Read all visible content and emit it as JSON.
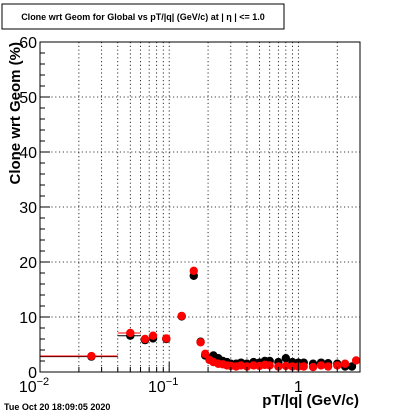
{
  "chart_data": {
    "type": "scatter",
    "title": "Clone wrt Geom for Global vs pT/|q| (GeV/c) at | η | <= 1.0",
    "xlabel": "pT/|q| (GeV/c)",
    "ylabel": "Clone wrt Geom (%)",
    "x_scale": "log",
    "xlim": [
      0.01,
      3.0
    ],
    "ylim": [
      0,
      60
    ],
    "grid": true,
    "legend": "none",
    "y_ticks": [
      "0",
      "10",
      "20",
      "30",
      "40",
      "50",
      "60"
    ],
    "x_tick_labels": [
      {
        "value": 0.01,
        "base": "10",
        "exp": "−2"
      },
      {
        "value": 0.1,
        "base": "10",
        "exp": "−1"
      },
      {
        "value": 1,
        "base": "1",
        "exp": ""
      }
    ],
    "series": [
      {
        "color": "#000000",
        "x": [
          0.025,
          0.05,
          0.065,
          0.075,
          0.095,
          0.125,
          0.155,
          0.175,
          0.19,
          0.205,
          0.22,
          0.24,
          0.26,
          0.28,
          0.3,
          0.33,
          0.36,
          0.4,
          0.45,
          0.5,
          0.55,
          0.6,
          0.7,
          0.8,
          0.9,
          1.0,
          1.1,
          1.3,
          1.5,
          1.7,
          2.0,
          2.3,
          2.6
        ],
        "y": [
          2.8,
          6.6,
          5.8,
          6.1,
          6.0,
          10.1,
          17.5,
          5.5,
          3.0,
          2.5,
          3.0,
          2.5,
          2.0,
          1.8,
          1.5,
          1.5,
          1.7,
          1.5,
          1.8,
          1.7,
          2.0,
          2.0,
          1.8,
          2.5,
          1.8,
          1.7,
          1.7,
          1.5,
          1.7,
          1.6,
          1.5,
          1.0,
          1.0
        ],
        "xerr": [
          0.015,
          0.01,
          0.005,
          0.005,
          0.005,
          0.005,
          0.005,
          0.005,
          0.005,
          0.005,
          0.005,
          0.005,
          0.005,
          0.005,
          0.005,
          0.005,
          0.005,
          0.005,
          0.005,
          0.005,
          0.005,
          0.005,
          0.005,
          0.005,
          0.005,
          0.005,
          0.005,
          0.005,
          0.005,
          0.005,
          0.005,
          0.005,
          0.005
        ]
      },
      {
        "color": "#ff0000",
        "x": [
          0.025,
          0.05,
          0.065,
          0.075,
          0.095,
          0.125,
          0.155,
          0.175,
          0.19,
          0.205,
          0.22,
          0.24,
          0.26,
          0.28,
          0.3,
          0.33,
          0.36,
          0.4,
          0.45,
          0.5,
          0.55,
          0.6,
          0.7,
          0.8,
          0.9,
          1.0,
          1.1,
          1.3,
          1.5,
          1.7,
          2.0,
          2.3,
          2.8
        ],
        "y": [
          2.9,
          7.1,
          6.0,
          6.6,
          6.1,
          10.2,
          18.4,
          5.4,
          3.3,
          2.2,
          1.8,
          1.5,
          1.4,
          1.2,
          1.1,
          1.0,
          1.2,
          1.0,
          1.2,
          1.1,
          1.3,
          1.2,
          1.0,
          1.1,
          1.0,
          1.0,
          1.0,
          0.9,
          1.2,
          1.0,
          1.2,
          1.5,
          2.1
        ],
        "xerr": [
          0.015,
          0.01,
          0.005,
          0.005,
          0.005,
          0.005,
          0.005,
          0.005,
          0.005,
          0.005,
          0.005,
          0.005,
          0.005,
          0.005,
          0.005,
          0.005,
          0.005,
          0.005,
          0.005,
          0.005,
          0.005,
          0.005,
          0.005,
          0.005,
          0.005,
          0.005,
          0.005,
          0.005,
          0.005,
          0.005,
          0.005,
          0.005,
          0.005
        ]
      }
    ]
  },
  "footer": {
    "timestamp": "Tue Oct 20 18:09:05 2020"
  }
}
